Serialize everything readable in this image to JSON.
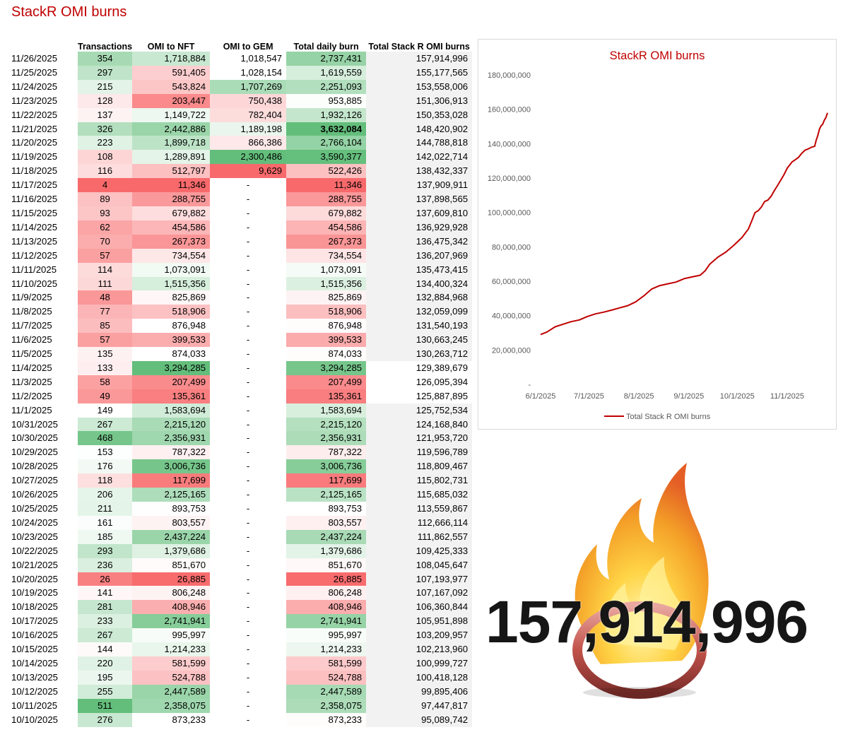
{
  "page_title": "StackR OMI burns",
  "columns": [
    "",
    "Transactions",
    "OMI to NFT",
    "OMI to GEM",
    "Total daily burn",
    "Total Stack R OMI burns"
  ],
  "rows": [
    [
      "11/26/2025",
      "354",
      "1,718,884",
      "1,018,547",
      "2,737,431",
      "157,914,996"
    ],
    [
      "11/25/2025",
      "297",
      "591,405",
      "1,028,154",
      "1,619,559",
      "155,177,565"
    ],
    [
      "11/24/2025",
      "215",
      "543,824",
      "1,707,269",
      "2,251,093",
      "153,558,006"
    ],
    [
      "11/23/2025",
      "128",
      "203,447",
      "750,438",
      "953,885",
      "151,306,913"
    ],
    [
      "11/22/2025",
      "137",
      "1,149,722",
      "782,404",
      "1,932,126",
      "150,353,028"
    ],
    [
      "11/21/2025",
      "326",
      "2,442,886",
      "1,189,198",
      "3,632,084",
      "148,420,902"
    ],
    [
      "11/20/2025",
      "223",
      "1,899,718",
      "866,386",
      "2,766,104",
      "144,788,818"
    ],
    [
      "11/19/2025",
      "108",
      "1,289,891",
      "2,300,486",
      "3,590,377",
      "142,022,714"
    ],
    [
      "11/18/2025",
      "116",
      "512,797",
      "9,629",
      "522,426",
      "138,432,337"
    ],
    [
      "11/17/2025",
      "4",
      "11,346",
      "-",
      "11,346",
      "137,909,911"
    ],
    [
      "11/16/2025",
      "89",
      "288,755",
      "-",
      "288,755",
      "137,898,565"
    ],
    [
      "11/15/2025",
      "93",
      "679,882",
      "-",
      "679,882",
      "137,609,810"
    ],
    [
      "11/14/2025",
      "62",
      "454,586",
      "-",
      "454,586",
      "136,929,928"
    ],
    [
      "11/13/2025",
      "70",
      "267,373",
      "-",
      "267,373",
      "136,475,342"
    ],
    [
      "11/12/2025",
      "57",
      "734,554",
      "-",
      "734,554",
      "136,207,969"
    ],
    [
      "11/11/2025",
      "114",
      "1,073,091",
      "-",
      "1,073,091",
      "135,473,415"
    ],
    [
      "11/10/2025",
      "111",
      "1,515,356",
      "-",
      "1,515,356",
      "134,400,324"
    ],
    [
      "11/9/2025",
      "48",
      "825,869",
      "-",
      "825,869",
      "132,884,968"
    ],
    [
      "11/8/2025",
      "77",
      "518,906",
      "-",
      "518,906",
      "132,059,099"
    ],
    [
      "11/7/2025",
      "85",
      "876,948",
      "-",
      "876,948",
      "131,540,193"
    ],
    [
      "11/6/2025",
      "57",
      "399,533",
      "-",
      "399,533",
      "130,663,245"
    ],
    [
      "11/5/2025",
      "135",
      "874,033",
      "-",
      "874,033",
      "130,263,712"
    ],
    [
      "11/4/2025",
      "133",
      "3,294,285",
      "-",
      "3,294,285",
      "129,389,679"
    ],
    [
      "11/3/2025",
      "58",
      "207,499",
      "-",
      "207,499",
      "126,095,394"
    ],
    [
      "11/2/2025",
      "49",
      "135,361",
      "-",
      "135,361",
      "125,887,895"
    ],
    [
      "11/1/2025",
      "149",
      "1,583,694",
      "-",
      "1,583,694",
      "125,752,534"
    ],
    [
      "10/31/2025",
      "267",
      "2,215,120",
      "-",
      "2,215,120",
      "124,168,840"
    ],
    [
      "10/30/2025",
      "468",
      "2,356,931",
      "-",
      "2,356,931",
      "121,953,720"
    ],
    [
      "10/29/2025",
      "153",
      "787,322",
      "-",
      "787,322",
      "119,596,789"
    ],
    [
      "10/28/2025",
      "176",
      "3,006,736",
      "-",
      "3,006,736",
      "118,809,467"
    ],
    [
      "10/27/2025",
      "118",
      "117,699",
      "-",
      "117,699",
      "115,802,731"
    ],
    [
      "10/26/2025",
      "206",
      "2,125,165",
      "-",
      "2,125,165",
      "115,685,032"
    ],
    [
      "10/25/2025",
      "211",
      "893,753",
      "-",
      "893,753",
      "113,559,867"
    ],
    [
      "10/24/2025",
      "161",
      "803,557",
      "-",
      "803,557",
      "112,666,114"
    ],
    [
      "10/23/2025",
      "185",
      "2,437,224",
      "-",
      "2,437,224",
      "111,862,557"
    ],
    [
      "10/22/2025",
      "293",
      "1,379,686",
      "-",
      "1,379,686",
      "109,425,333"
    ],
    [
      "10/21/2025",
      "236",
      "851,670",
      "-",
      "851,670",
      "108,045,647"
    ],
    [
      "10/20/2025",
      "26",
      "26,885",
      "-",
      "26,885",
      "107,193,977"
    ],
    [
      "10/19/2025",
      "141",
      "806,248",
      "-",
      "806,248",
      "107,167,092"
    ],
    [
      "10/18/2025",
      "281",
      "408,946",
      "-",
      "408,946",
      "106,360,844"
    ],
    [
      "10/17/2025",
      "233",
      "2,741,941",
      "-",
      "2,741,941",
      "105,951,898"
    ],
    [
      "10/16/2025",
      "267",
      "995,997",
      "-",
      "995,997",
      "103,209,957"
    ],
    [
      "10/15/2025",
      "144",
      "1,214,233",
      "-",
      "1,214,233",
      "102,213,960"
    ],
    [
      "10/14/2025",
      "220",
      "581,599",
      "-",
      "581,599",
      "100,999,727"
    ],
    [
      "10/13/2025",
      "195",
      "524,788",
      "-",
      "524,788",
      "100,418,128"
    ],
    [
      "10/12/2025",
      "255",
      "2,447,589",
      "-",
      "2,447,589",
      "99,895,406"
    ],
    [
      "10/11/2025",
      "511",
      "2,358,075",
      "-",
      "2,358,075",
      "97,447,817"
    ],
    [
      "10/10/2025",
      "276",
      "873,233",
      "-",
      "873,233",
      "95,089,742"
    ]
  ],
  "chart_data": {
    "type": "line",
    "title": "StackR OMI burns",
    "x_ticks": [
      "6/1/2025",
      "7/1/2025",
      "8/1/2025",
      "9/1/2025",
      "10/1/2025",
      "11/1/2025"
    ],
    "y_ticks": [
      "-",
      "20,000,000",
      "40,000,000",
      "60,000,000",
      "80,000,000",
      "100,000,000",
      "120,000,000",
      "140,000,000",
      "160,000,000",
      "180,000,000"
    ],
    "ylim": [
      0,
      180000000
    ],
    "xlim": [
      "6/1/2025",
      "11/26/2025"
    ],
    "grid": false,
    "legend": "bottom",
    "series": [
      {
        "name": "Total Stack R OMI burns",
        "color": "#c00000",
        "points": [
          [
            "6/1/2025",
            29000000
          ],
          [
            "6/5/2025",
            30500000
          ],
          [
            "6/10/2025",
            33500000
          ],
          [
            "6/15/2025",
            35000000
          ],
          [
            "6/20/2025",
            36500000
          ],
          [
            "6/25/2025",
            37500000
          ],
          [
            "6/30/2025",
            39500000
          ],
          [
            "7/5/2025",
            41000000
          ],
          [
            "7/10/2025",
            42000000
          ],
          [
            "7/15/2025",
            43200000
          ],
          [
            "7/20/2025",
            44500000
          ],
          [
            "7/25/2025",
            45800000
          ],
          [
            "7/30/2025",
            48000000
          ],
          [
            "8/4/2025",
            51500000
          ],
          [
            "8/9/2025",
            55500000
          ],
          [
            "8/14/2025",
            57500000
          ],
          [
            "8/19/2025",
            58500000
          ],
          [
            "8/24/2025",
            59500000
          ],
          [
            "8/29/2025",
            61500000
          ],
          [
            "9/3/2025",
            62500000
          ],
          [
            "9/8/2025",
            63500000
          ],
          [
            "9/11/2025",
            66000000
          ],
          [
            "9/14/2025",
            70000000
          ],
          [
            "9/19/2025",
            74000000
          ],
          [
            "9/24/2025",
            77000000
          ],
          [
            "9/29/2025",
            81000000
          ],
          [
            "10/4/2025",
            85500000
          ],
          [
            "10/8/2025",
            90500000
          ],
          [
            "10/10/2025",
            95089742
          ],
          [
            "10/12/2025",
            99895406
          ],
          [
            "10/14/2025",
            100999727
          ],
          [
            "10/16/2025",
            103209957
          ],
          [
            "10/18/2025",
            106360844
          ],
          [
            "10/20/2025",
            107193977
          ],
          [
            "10/22/2025",
            109425333
          ],
          [
            "10/24/2025",
            112666114
          ],
          [
            "10/26/2025",
            115685032
          ],
          [
            "10/28/2025",
            118809467
          ],
          [
            "10/30/2025",
            121953720
          ],
          [
            "11/1/2025",
            125752534
          ],
          [
            "11/4/2025",
            129389679
          ],
          [
            "11/6/2025",
            130663245
          ],
          [
            "11/8/2025",
            132059099
          ],
          [
            "11/10/2025",
            134400324
          ],
          [
            "11/12/2025",
            136207969
          ],
          [
            "11/14/2025",
            136929928
          ],
          [
            "11/16/2025",
            137898565
          ],
          [
            "11/18/2025",
            138432337
          ],
          [
            "11/19/2025",
            142022714
          ],
          [
            "11/20/2025",
            144788818
          ],
          [
            "11/21/2025",
            148420902
          ],
          [
            "11/22/2025",
            150353028
          ],
          [
            "11/23/2025",
            151306913
          ],
          [
            "11/24/2025",
            153558006
          ],
          [
            "11/25/2025",
            155177565
          ],
          [
            "11/26/2025",
            157914996
          ]
        ]
      }
    ]
  },
  "big_total": "157,914,996",
  "colors": {
    "title": "#c00000",
    "line": "#c00000",
    "green": "#63be7b",
    "red": "#f8696b",
    "shade": "#f2f2f2"
  },
  "decoration_icon": "fire-ring-icon"
}
